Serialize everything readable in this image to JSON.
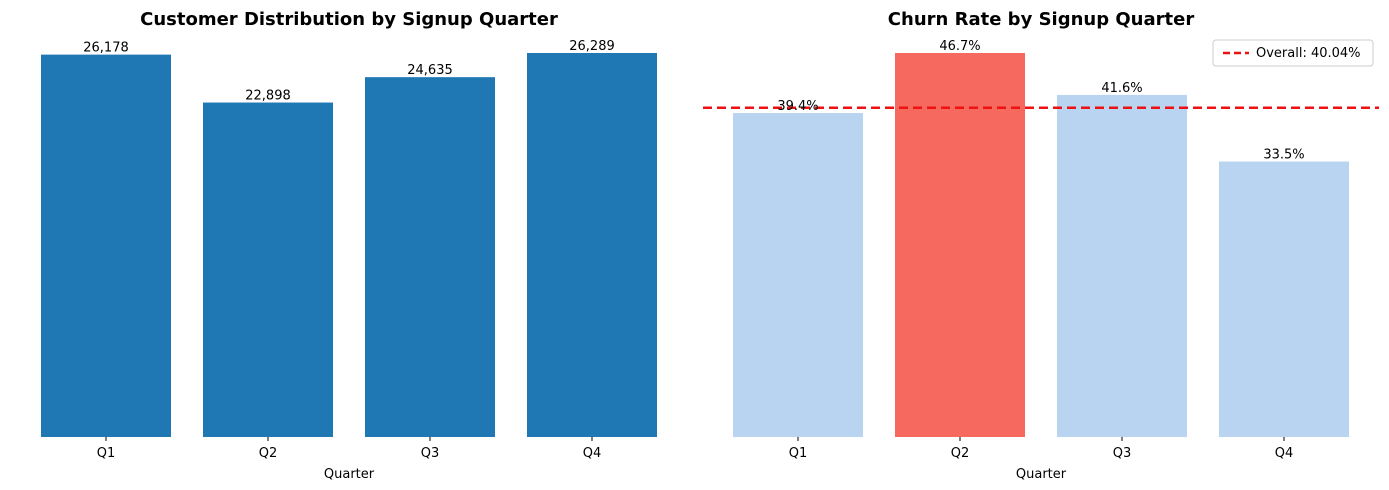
{
  "chart_data": [
    {
      "type": "bar",
      "title": "Customer Distribution by Signup Quarter",
      "xlabel": "Quarter",
      "ylabel": "",
      "categories": [
        "Q1",
        "Q2",
        "Q3",
        "Q4"
      ],
      "values": [
        26178,
        22898,
        24635,
        26289
      ],
      "data_labels": [
        "26,178",
        "22,898",
        "24,635",
        "26,289"
      ],
      "ylim": [
        0,
        26289
      ],
      "grid": false,
      "colors": {
        "bar": "#1f77b4"
      }
    },
    {
      "type": "bar",
      "title": "Churn Rate by Signup Quarter",
      "xlabel": "Quarter",
      "ylabel": "",
      "categories": [
        "Q1",
        "Q2",
        "Q3",
        "Q4"
      ],
      "values": [
        39.4,
        46.7,
        41.6,
        33.5
      ],
      "data_labels": [
        "39.4%",
        "46.7%",
        "41.6%",
        "33.5%"
      ],
      "ylim": [
        0,
        46.7
      ],
      "grid": false,
      "highlight_index": 1,
      "colors": {
        "bar": "#b8d4f1",
        "highlight": "#f6695e",
        "reference_line": "#ee1111"
      },
      "reference_line": {
        "value": 40.04,
        "label": "Overall: 40.04%",
        "style": "dashed"
      },
      "legend": {
        "placement": "top-right",
        "entries": [
          "Overall: 40.04%"
        ]
      }
    }
  ]
}
